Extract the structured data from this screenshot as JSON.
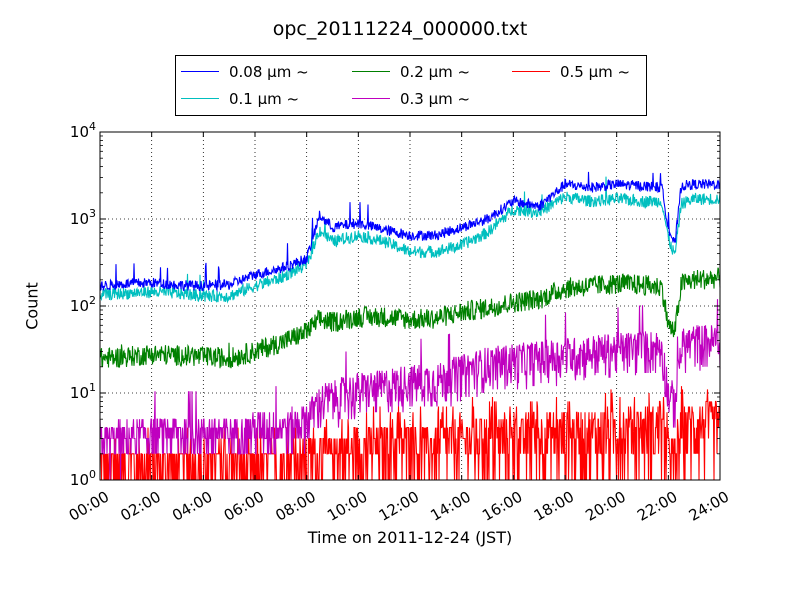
{
  "chart_data": {
    "type": "line",
    "title": "opc_20111224_000000.txt",
    "xlabel": "Time on 2011-12-24 (JST)",
    "ylabel": "Count",
    "y_scale": "log",
    "ylim": [
      1,
      10000
    ],
    "xlim": [
      "00:00",
      "24:00"
    ],
    "y_ticks": [
      {
        "value": 1,
        "label": "10",
        "exp": "0"
      },
      {
        "value": 10,
        "label": "10",
        "exp": "1"
      },
      {
        "value": 100,
        "label": "10",
        "exp": "2"
      },
      {
        "value": 1000,
        "label": "10",
        "exp": "3"
      },
      {
        "value": 10000,
        "label": "10",
        "exp": "4"
      }
    ],
    "x_ticks": [
      "00:00",
      "02:00",
      "04:00",
      "06:00",
      "08:00",
      "10:00",
      "12:00",
      "14:00",
      "16:00",
      "18:00",
      "20:00",
      "22:00",
      "24:00"
    ],
    "grid": true,
    "legend_position": "top-center",
    "x": [
      "00:00",
      "01:00",
      "02:00",
      "03:00",
      "04:00",
      "05:00",
      "06:00",
      "07:00",
      "08:00",
      "08:30",
      "09:00",
      "10:00",
      "11:00",
      "12:00",
      "13:00",
      "14:00",
      "15:00",
      "16:00",
      "17:00",
      "18:00",
      "19:00",
      "20:00",
      "21:00",
      "21:45",
      "22:00",
      "22:15",
      "22:30",
      "23:00",
      "24:00"
    ],
    "series": [
      {
        "name": "0.08 μm ~",
        "color": "#0000ff",
        "values": [
          170,
          180,
          185,
          175,
          170,
          175,
          230,
          270,
          350,
          1100,
          800,
          900,
          750,
          650,
          650,
          800,
          1000,
          1600,
          1400,
          2500,
          2300,
          2500,
          2400,
          2300,
          800,
          500,
          2400,
          2500,
          2500
        ]
      },
      {
        "name": "0.1 μm ~",
        "color": "#00bfbf",
        "values": [
          135,
          140,
          145,
          140,
          130,
          130,
          170,
          210,
          300,
          750,
          550,
          650,
          550,
          420,
          420,
          500,
          700,
          1300,
          1200,
          1800,
          1600,
          1700,
          1600,
          1600,
          600,
          380,
          1500,
          1700,
          1700
        ]
      },
      {
        "name": "0.2 μm ~",
        "color": "#008000",
        "values": [
          25,
          26,
          28,
          27,
          26,
          25,
          30,
          38,
          50,
          70,
          65,
          75,
          75,
          70,
          72,
          85,
          95,
          110,
          120,
          160,
          170,
          180,
          175,
          165,
          60,
          50,
          180,
          200,
          210
        ]
      },
      {
        "name": "0.3 μm ~",
        "color": "#bf00bf",
        "values": [
          3,
          3,
          3.5,
          3.5,
          3.5,
          3.5,
          4,
          4,
          5,
          8,
          9,
          11,
          12,
          14,
          14,
          18,
          22,
          24,
          26,
          28,
          30,
          32,
          34,
          34,
          10,
          8,
          35,
          40,
          40
        ]
      },
      {
        "name": "0.5 μm ~",
        "color": "#ff0000",
        "values": [
          1.4,
          1.4,
          1.4,
          1.4,
          1.4,
          1.4,
          1.4,
          1.5,
          1.6,
          2,
          2,
          2.2,
          2.4,
          2.5,
          2.5,
          2.8,
          3,
          3,
          3.3,
          3.4,
          3.6,
          3.8,
          4,
          4,
          2,
          1.5,
          4,
          4.5,
          4.5
        ]
      }
    ]
  }
}
